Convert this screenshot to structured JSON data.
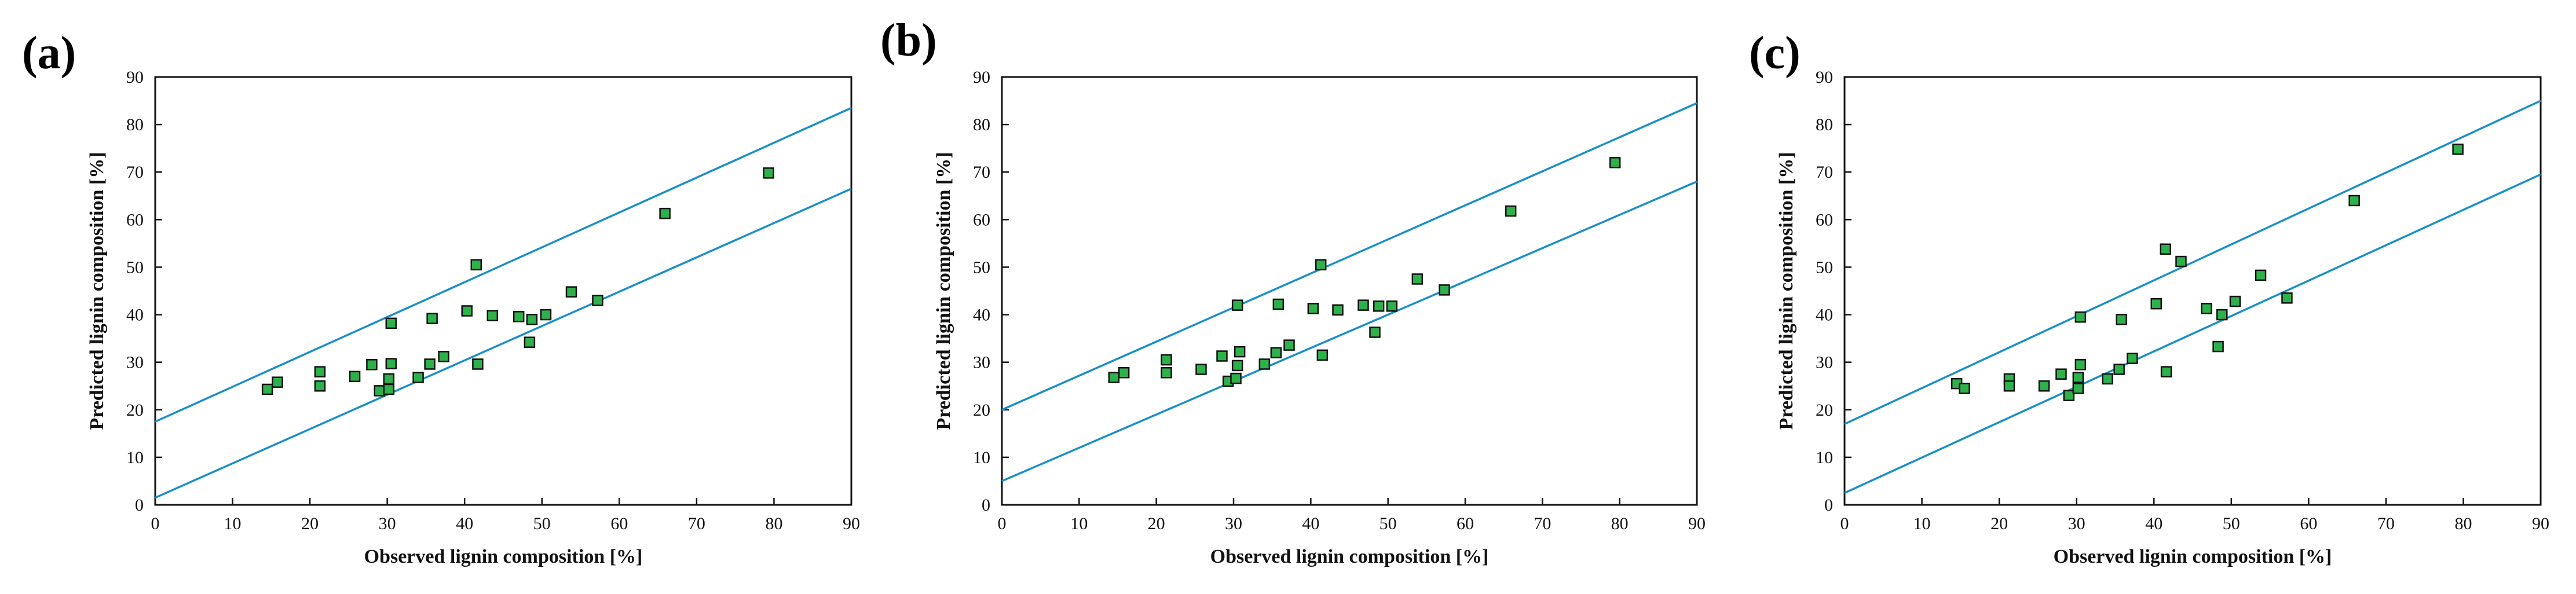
{
  "marker_color": "#2db14a",
  "line_color": "#1a8fc9",
  "chart_data": [
    {
      "type": "scatter",
      "panel_label": "(a)",
      "xlabel": "Observed lignin composition [%]",
      "ylabel": "Predicted lignin composition [%]",
      "xlim": [
        0,
        90
      ],
      "ylim": [
        0,
        90
      ],
      "xticks": [
        "0",
        "10",
        "20",
        "30",
        "40",
        "50",
        "60",
        "70",
        "80",
        "90"
      ],
      "yticks": [
        "0",
        "10",
        "20",
        "30",
        "40",
        "50",
        "60",
        "70",
        "80",
        "90"
      ],
      "bounds": [
        {
          "name": "upper",
          "x": [
            0,
            90
          ],
          "y": [
            17.5,
            83.5
          ]
        },
        {
          "name": "lower",
          "x": [
            0,
            90
          ],
          "y": [
            1.5,
            66.5
          ]
        }
      ],
      "points": [
        [
          14.5,
          24.3
        ],
        [
          15.8,
          25.8
        ],
        [
          21.3,
          28.0
        ],
        [
          21.3,
          25.0
        ],
        [
          25.8,
          27.0
        ],
        [
          28.0,
          29.5
        ],
        [
          29.0,
          24.0
        ],
        [
          30.2,
          24.3
        ],
        [
          30.2,
          26.5
        ],
        [
          30.5,
          29.7
        ],
        [
          30.5,
          38.2
        ],
        [
          34.0,
          26.8
        ],
        [
          35.5,
          29.6
        ],
        [
          35.8,
          39.2
        ],
        [
          37.3,
          31.2
        ],
        [
          40.3,
          40.8
        ],
        [
          41.5,
          50.5
        ],
        [
          41.7,
          29.6
        ],
        [
          43.6,
          39.8
        ],
        [
          47.0,
          39.6
        ],
        [
          48.4,
          34.2
        ],
        [
          48.7,
          39.0
        ],
        [
          50.5,
          40.0
        ],
        [
          53.8,
          44.8
        ],
        [
          57.2,
          43.0
        ],
        [
          65.9,
          61.3
        ],
        [
          79.3,
          69.8
        ]
      ]
    },
    {
      "type": "scatter",
      "panel_label": "(b)",
      "xlabel": "Observed lignin composition [%]",
      "ylabel": "Predicted lignin composition [%]",
      "xlim": [
        0,
        90
      ],
      "ylim": [
        0,
        90
      ],
      "xticks": [
        "0",
        "10",
        "20",
        "30",
        "40",
        "50",
        "60",
        "70",
        "80",
        "90"
      ],
      "yticks": [
        "0",
        "10",
        "20",
        "30",
        "40",
        "50",
        "60",
        "70",
        "80",
        "90"
      ],
      "bounds": [
        {
          "name": "upper",
          "x": [
            0,
            90
          ],
          "y": [
            20.0,
            84.5
          ]
        },
        {
          "name": "lower",
          "x": [
            0,
            90
          ],
          "y": [
            5.0,
            68.0
          ]
        }
      ],
      "points": [
        [
          14.5,
          26.8
        ],
        [
          15.8,
          27.8
        ],
        [
          21.3,
          30.5
        ],
        [
          21.3,
          27.8
        ],
        [
          25.8,
          28.5
        ],
        [
          28.5,
          31.3
        ],
        [
          29.3,
          26.0
        ],
        [
          30.3,
          26.6
        ],
        [
          30.5,
          29.3
        ],
        [
          30.8,
          32.2
        ],
        [
          30.5,
          42.0
        ],
        [
          34.0,
          29.6
        ],
        [
          35.5,
          32.0
        ],
        [
          35.8,
          42.2
        ],
        [
          37.2,
          33.6
        ],
        [
          40.3,
          41.3
        ],
        [
          41.3,
          50.5
        ],
        [
          41.5,
          31.5
        ],
        [
          43.5,
          41.0
        ],
        [
          46.8,
          42.0
        ],
        [
          48.3,
          36.3
        ],
        [
          48.8,
          41.8
        ],
        [
          50.5,
          41.8
        ],
        [
          53.8,
          47.5
        ],
        [
          57.3,
          45.2
        ],
        [
          65.9,
          61.8
        ],
        [
          79.4,
          72.0
        ]
      ]
    },
    {
      "type": "scatter",
      "panel_label": "(c)",
      "xlabel": "Observed lignin composition [%]",
      "ylabel": "Predicted lignin composition [%]",
      "xlim": [
        0,
        90
      ],
      "ylim": [
        0,
        90
      ],
      "xticks": [
        "0",
        "10",
        "20",
        "30",
        "40",
        "50",
        "60",
        "70",
        "80",
        "90"
      ],
      "yticks": [
        "0",
        "10",
        "20",
        "30",
        "40",
        "50",
        "60",
        "70",
        "80",
        "90"
      ],
      "bounds": [
        {
          "name": "upper",
          "x": [
            0,
            90
          ],
          "y": [
            17.0,
            85.0
          ]
        },
        {
          "name": "lower",
          "x": [
            0,
            90
          ],
          "y": [
            2.5,
            69.5
          ]
        }
      ],
      "points": [
        [
          14.5,
          25.5
        ],
        [
          15.5,
          24.5
        ],
        [
          21.3,
          26.5
        ],
        [
          21.3,
          25.0
        ],
        [
          25.8,
          25.0
        ],
        [
          28.0,
          27.5
        ],
        [
          29.0,
          23.0
        ],
        [
          30.2,
          24.5
        ],
        [
          30.2,
          26.8
        ],
        [
          30.5,
          29.5
        ],
        [
          30.5,
          39.5
        ],
        [
          34.0,
          26.5
        ],
        [
          35.5,
          28.5
        ],
        [
          35.8,
          39.0
        ],
        [
          37.2,
          30.8
        ],
        [
          40.3,
          42.3
        ],
        [
          41.5,
          53.8
        ],
        [
          41.6,
          28.0
        ],
        [
          43.5,
          51.2
        ],
        [
          46.8,
          41.3
        ],
        [
          48.3,
          33.3
        ],
        [
          48.8,
          40.0
        ],
        [
          50.5,
          42.8
        ],
        [
          53.8,
          48.3
        ],
        [
          57.2,
          43.5
        ],
        [
          65.9,
          64.0
        ],
        [
          79.3,
          74.8
        ]
      ]
    }
  ]
}
